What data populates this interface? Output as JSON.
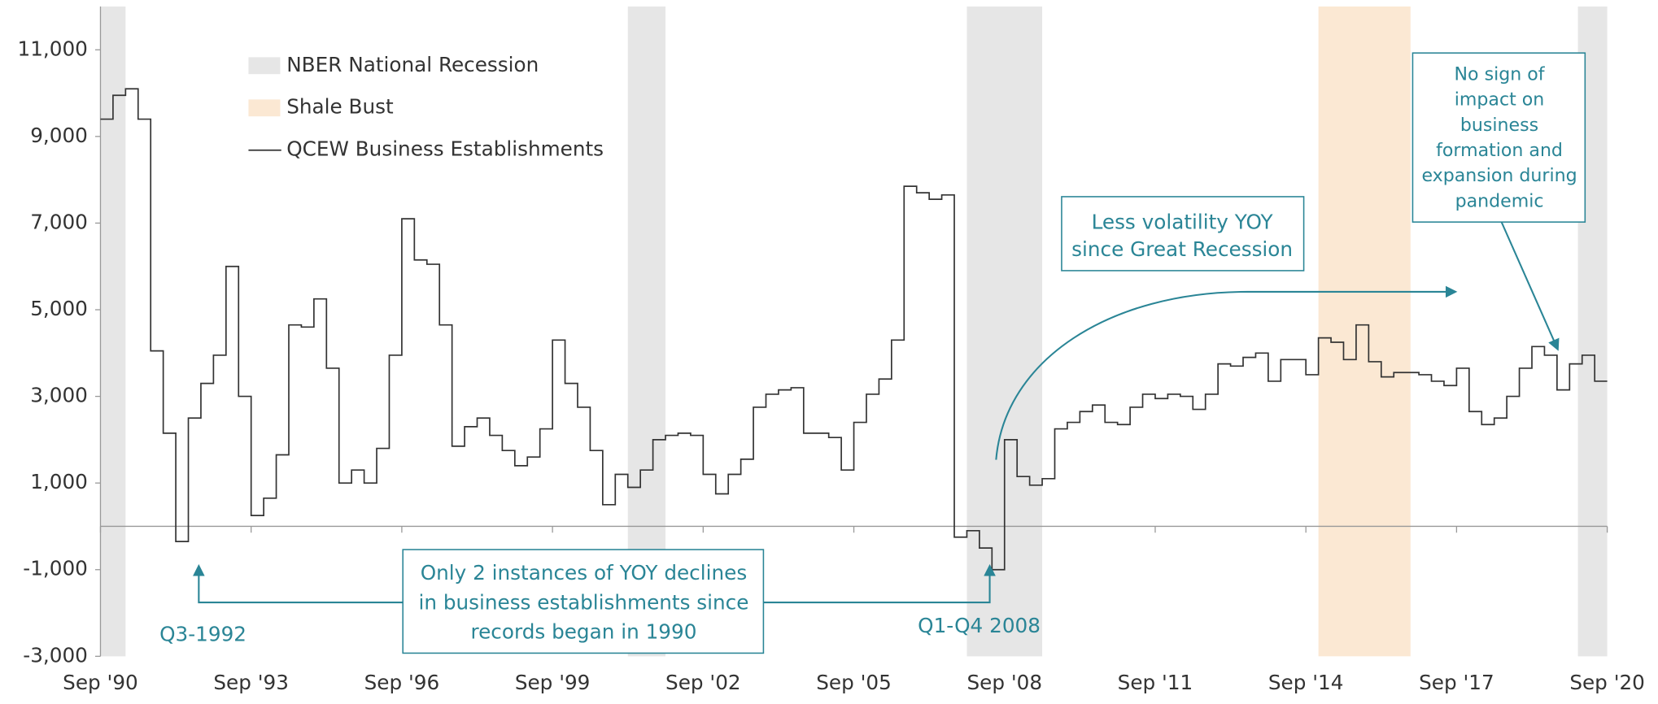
{
  "chart_data": {
    "type": "line",
    "step": true,
    "series": [
      {
        "name": "QCEW Business Establishments",
        "color": "#333333",
        "x": [
          "1990-09",
          "1990-12",
          "1991-03",
          "1991-06",
          "1991-09",
          "1991-12",
          "1992-03",
          "1992-06",
          "1992-09",
          "1992-12",
          "1993-03",
          "1993-06",
          "1993-09",
          "1993-12",
          "1994-03",
          "1994-06",
          "1994-09",
          "1994-12",
          "1995-03",
          "1995-06",
          "1995-09",
          "1995-12",
          "1996-03",
          "1996-06",
          "1996-09",
          "1996-12",
          "1997-03",
          "1997-06",
          "1997-09",
          "1997-12",
          "1998-03",
          "1998-06",
          "1998-09",
          "1998-12",
          "1999-03",
          "1999-06",
          "1999-09",
          "1999-12",
          "2000-03",
          "2000-06",
          "2000-09",
          "2000-12",
          "2001-03",
          "2001-06",
          "2001-09",
          "2001-12",
          "2002-03",
          "2002-06",
          "2002-09",
          "2002-12",
          "2003-03",
          "2003-06",
          "2003-09",
          "2003-12",
          "2004-03",
          "2004-06",
          "2004-09",
          "2004-12",
          "2005-03",
          "2005-06",
          "2005-09",
          "2005-12",
          "2006-03",
          "2006-06",
          "2006-09",
          "2006-12",
          "2007-03",
          "2007-06",
          "2007-09",
          "2007-12",
          "2008-03",
          "2008-06",
          "2008-09",
          "2008-12",
          "2009-03",
          "2009-06",
          "2009-09",
          "2009-12",
          "2010-03",
          "2010-06",
          "2010-09",
          "2010-12",
          "2011-03",
          "2011-06",
          "2011-09",
          "2011-12",
          "2012-03",
          "2012-06",
          "2012-09",
          "2012-12",
          "2013-03",
          "2013-06",
          "2013-09",
          "2013-12",
          "2014-03",
          "2014-06",
          "2014-09",
          "2014-12",
          "2015-03",
          "2015-06",
          "2015-09",
          "2015-12",
          "2016-03",
          "2016-06",
          "2016-09",
          "2016-12",
          "2017-03",
          "2017-06",
          "2017-09",
          "2017-12",
          "2018-03",
          "2018-06",
          "2018-09",
          "2018-12",
          "2019-03",
          "2019-06",
          "2019-09",
          "2019-12",
          "2020-03",
          "2020-06"
        ],
        "values": [
          9400,
          9950,
          10100,
          9400,
          4050,
          2150,
          -350,
          2500,
          3300,
          3950,
          6000,
          3000,
          250,
          650,
          1650,
          4650,
          4600,
          5250,
          3650,
          1000,
          1300,
          1000,
          1800,
          3950,
          7100,
          6150,
          6050,
          4650,
          1850,
          2300,
          2500,
          2100,
          1750,
          1400,
          1600,
          2250,
          4300,
          3300,
          2750,
          1750,
          500,
          1200,
          900,
          1300,
          2000,
          2100,
          2150,
          2100,
          1200,
          750,
          1200,
          1550,
          2750,
          3050,
          3150,
          3200,
          2150,
          2150,
          2050,
          1300,
          2400,
          3050,
          3400,
          4300,
          7850,
          7700,
          7550,
          7650,
          -250,
          -100,
          -500,
          -1000,
          2000,
          1150,
          950,
          1100,
          2250,
          2400,
          2650,
          2800,
          2400,
          2350,
          2750,
          3050,
          2950,
          3050,
          3000,
          2700,
          3050,
          3750,
          3700,
          3900,
          4000,
          3350,
          3850,
          3850,
          3500,
          4350,
          4250,
          3850,
          4650,
          3800,
          3450,
          3550,
          3550,
          3500,
          3350,
          3250,
          3650,
          2650,
          2350,
          2500,
          3000,
          3650,
          4150,
          3950,
          3150,
          3750,
          3950,
          3350
        ]
      }
    ],
    "shaded_ranges": [
      {
        "name": "NBER National Recession",
        "color": "#e6e6e6",
        "ranges": [
          [
            "1990-09",
            "1991-03"
          ],
          [
            "2001-03",
            "2001-12"
          ],
          [
            "2007-12",
            "2009-06"
          ],
          [
            "2020-02",
            "2020-09"
          ]
        ]
      },
      {
        "name": "Shale Bust",
        "color": "#fbe8d3",
        "ranges": [
          [
            "2014-12",
            "2016-10"
          ]
        ]
      }
    ],
    "xlim": [
      "1990-09",
      "2020-09"
    ],
    "xticks": [
      {
        "value": "1990-09",
        "label": "Sep '90"
      },
      {
        "value": "1993-09",
        "label": "Sep '93"
      },
      {
        "value": "1996-09",
        "label": "Sep '96"
      },
      {
        "value": "1999-09",
        "label": "Sep '99"
      },
      {
        "value": "2002-09",
        "label": "Sep '02"
      },
      {
        "value": "2005-09",
        "label": "Sep '05"
      },
      {
        "value": "2008-09",
        "label": "Sep '08"
      },
      {
        "value": "2011-09",
        "label": "Sep '11"
      },
      {
        "value": "2014-09",
        "label": "Sep '14"
      },
      {
        "value": "2017-09",
        "label": "Sep '17"
      },
      {
        "value": "2020-09",
        "label": "Sep '20"
      }
    ],
    "ylim": [
      -3000,
      12000
    ],
    "yticks": [
      {
        "value": -3000,
        "label": "-3,000"
      },
      {
        "value": -1000,
        "label": "-1,000"
      },
      {
        "value": 1000,
        "label": "1,000"
      },
      {
        "value": 3000,
        "label": "3,000"
      },
      {
        "value": 5000,
        "label": "5,000"
      },
      {
        "value": 7000,
        "label": "7,000"
      },
      {
        "value": 9000,
        "label": "9,000"
      },
      {
        "value": 11000,
        "label": "11,000"
      }
    ],
    "annotations": [
      {
        "lines": [
          "Less volatility YOY",
          "since Great Recession"
        ]
      },
      {
        "lines": [
          "No sign of",
          "impact on",
          "business",
          "formation and",
          "expansion during",
          "pandemic"
        ]
      },
      {
        "lines": [
          "Only 2 instances of YOY declines",
          "in business establishments since",
          "records began in 1990"
        ]
      },
      {
        "lines": [
          "Q3-1992"
        ]
      },
      {
        "lines": [
          "Q1-Q4 2008"
        ]
      }
    ]
  }
}
